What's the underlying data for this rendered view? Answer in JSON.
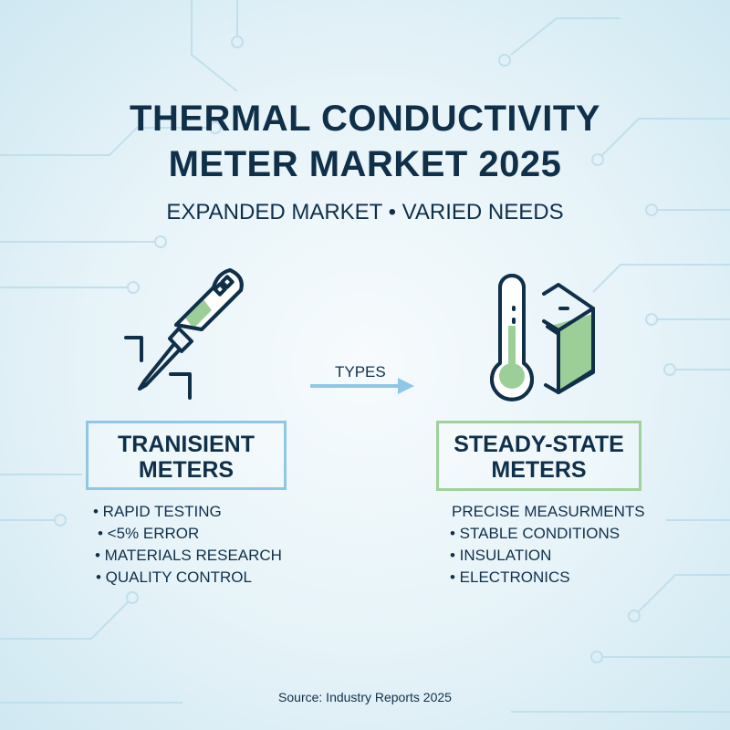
{
  "title_lines": [
    "THERMAL CONDUCTIVITY",
    "METER MARKET 2025"
  ],
  "subtitle": "EXPANDED MARKET • VARIED NEEDS",
  "arrow_label": "TYPES",
  "left": {
    "icon": "probe-icon",
    "heading_lines": [
      "TRANISIENT",
      "METERS"
    ],
    "items": [
      "• RAPID TESTING",
      "• <5% ERROR",
      "• MATERIALS RESEARCH",
      "• QUALITY CONTROL"
    ],
    "accent": "#8ec8e6"
  },
  "right": {
    "icon": "thermometer-block-icon",
    "heading_lines": [
      "STEADY-STATE",
      "METERS"
    ],
    "items": [
      "PRECISE MEASURMENTS",
      "• STABLE CONDITIONS",
      "• INSULATION",
      "• ELECTRONICS"
    ],
    "accent": "#9fd29b"
  },
  "source": "Source: Industry Reports 2025",
  "colors": {
    "text": "#10304a",
    "green": "#9ccf98",
    "blue": "#8ec8e6"
  }
}
